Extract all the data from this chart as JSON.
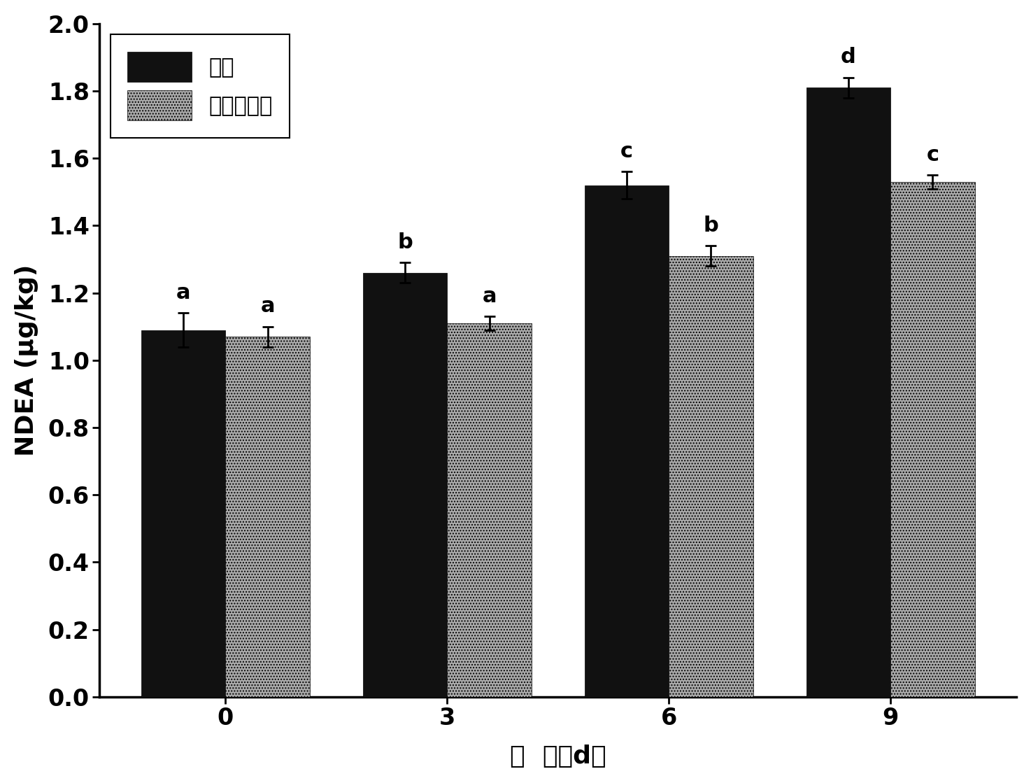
{
  "categories": [
    0,
    3,
    6,
    9
  ],
  "control_values": [
    1.09,
    1.26,
    1.52,
    1.81
  ],
  "control_errors": [
    0.05,
    0.03,
    0.04,
    0.03
  ],
  "bacteria_values": [
    1.07,
    1.11,
    1.31,
    1.53
  ],
  "bacteria_errors": [
    0.03,
    0.02,
    0.03,
    0.02
  ],
  "control_color": "#111111",
  "bacteria_facecolor": "#aaaaaa",
  "control_label": "对照",
  "bacteria_label": "弯曲乳杆菌",
  "xlabel": "时  间（d）",
  "ylabel": "NDEA (μg/kg)",
  "ylim": [
    0.0,
    2.0
  ],
  "yticks": [
    0.0,
    0.2,
    0.4,
    0.6,
    0.8,
    1.0,
    1.2,
    1.4,
    1.6,
    1.8,
    2.0
  ],
  "control_letters": [
    "a",
    "b",
    "c",
    "d"
  ],
  "bacteria_letters": [
    "a",
    "a",
    "b",
    "c"
  ],
  "bar_width": 0.38,
  "background_color": "#ffffff",
  "label_fontsize": 26,
  "tick_fontsize": 24,
  "legend_fontsize": 22,
  "letter_fontsize": 22
}
